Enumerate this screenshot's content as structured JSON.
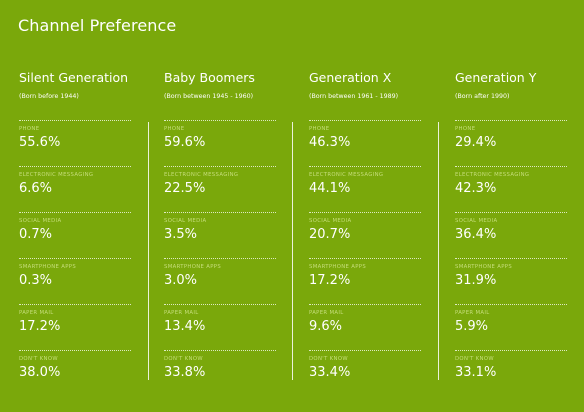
{
  "title": "Channel Preference",
  "chart_data": {
    "type": "table",
    "title": "Channel Preference",
    "channels": [
      "PHONE",
      "ELECTRONIC MESSAGING",
      "SOCIAL MEDIA",
      "SMARTPHONE APPS",
      "PAPER MAIL",
      "DON'T KNOW"
    ],
    "series": [
      {
        "name": "Silent Generation",
        "subtitle": "(Born before 1944)",
        "values": [
          "55.6%",
          "6.6%",
          "0.7%",
          "0.3%",
          "17.2%",
          "38.0%"
        ]
      },
      {
        "name": "Baby Boomers",
        "subtitle": "(Born between 1945 - 1960)",
        "values": [
          "59.6%",
          "22.5%",
          "3.5%",
          "3.0%",
          "13.4%",
          "33.8%"
        ]
      },
      {
        "name": "Generation X",
        "subtitle": "(Born between 1961 - 1989)",
        "values": [
          "46.3%",
          "44.1%",
          "20.7%",
          "17.2%",
          "9.6%",
          "33.4%"
        ]
      },
      {
        "name": "Generation Y",
        "subtitle": "(Born after 1990)",
        "values": [
          "29.4%",
          "42.3%",
          "36.4%",
          "31.9%",
          "5.9%",
          "33.1%"
        ]
      }
    ]
  },
  "colors": {
    "background": "#7aa80b",
    "text": "#ffffff",
    "channel_label": "#c6de7b"
  }
}
